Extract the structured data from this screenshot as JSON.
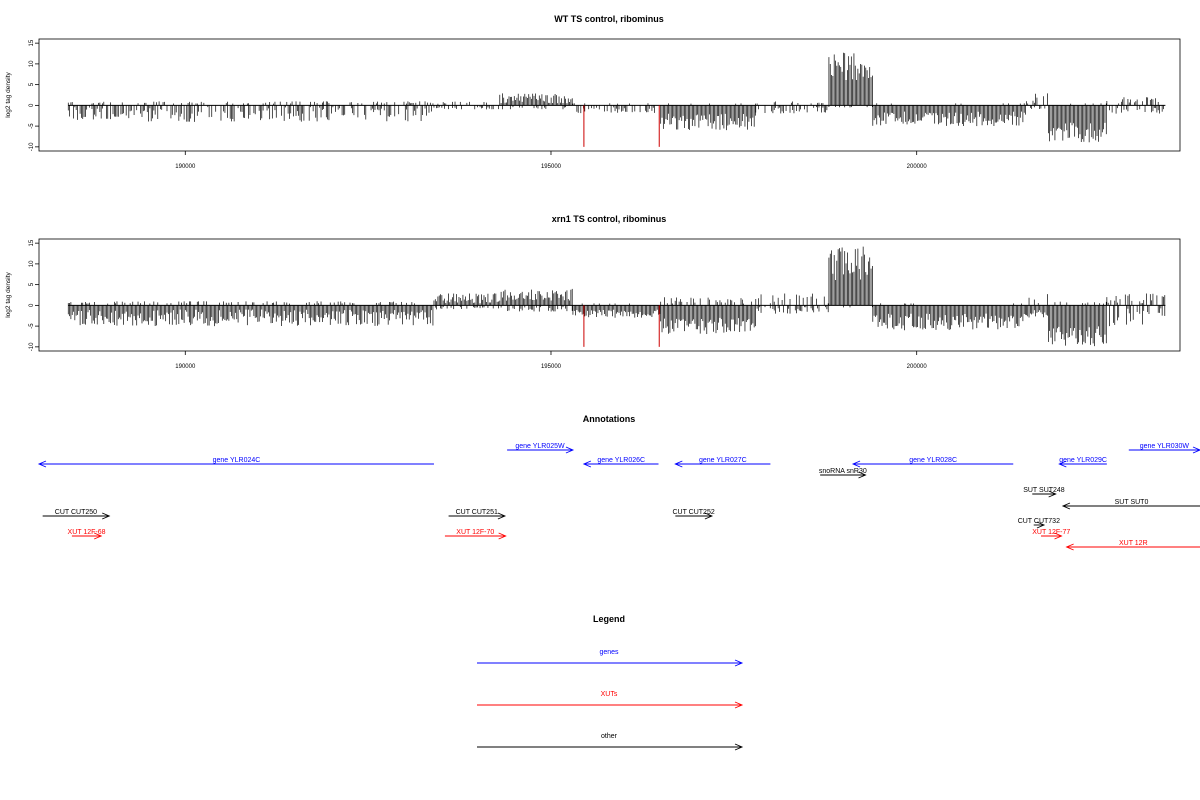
{
  "chart_data": [
    {
      "type": "bar",
      "title": "WT TS control, ribominus",
      "ylabel": "log2 tag density",
      "xlabel": "",
      "xlim": [
        188000,
        203600
      ],
      "ylim": [
        -11,
        16
      ],
      "yticks": [
        -10,
        -5,
        0,
        5,
        10,
        15
      ],
      "xticks": [
        190000,
        195000,
        200000
      ],
      "xtick_labels": [
        "190000",
        "195000",
        "200000"
      ],
      "ytick_labels": [
        "-10",
        "-5",
        "0",
        "5",
        "10",
        "15"
      ],
      "data_range": [
        188400,
        203400
      ],
      "segments": [
        {
          "from": 188400,
          "to": 193400,
          "pos": [
            0,
            1
          ],
          "neg": [
            0,
            4
          ]
        },
        {
          "from": 193400,
          "to": 194300,
          "pos": [
            0,
            1
          ],
          "neg": [
            0,
            1
          ]
        },
        {
          "from": 194300,
          "to": 195300,
          "pos": [
            0.5,
            3
          ],
          "neg": [
            0,
            1
          ]
        },
        {
          "from": 195300,
          "to": 196500,
          "pos": [
            0,
            0.5
          ],
          "neg": [
            0,
            2
          ]
        },
        {
          "from": 196500,
          "to": 197800,
          "pos": [
            0,
            0.5
          ],
          "neg": [
            2,
            6
          ]
        },
        {
          "from": 197800,
          "to": 198800,
          "pos": [
            0,
            1
          ],
          "neg": [
            0,
            2
          ]
        },
        {
          "from": 198800,
          "to": 199400,
          "pos": [
            6,
            13.5
          ],
          "neg": [
            0,
            0.5
          ]
        },
        {
          "from": 199400,
          "to": 201500,
          "pos": [
            0,
            0.5
          ],
          "neg": [
            1.5,
            5
          ]
        },
        {
          "from": 201500,
          "to": 201800,
          "pos": [
            0,
            3
          ],
          "neg": [
            0,
            1
          ]
        },
        {
          "from": 201800,
          "to": 202600,
          "pos": [
            0,
            0.5
          ],
          "neg": [
            4,
            9
          ]
        },
        {
          "from": 202600,
          "to": 203400,
          "pos": [
            0,
            2
          ],
          "neg": [
            0,
            2
          ]
        }
      ],
      "red_lines": [
        {
          "x": 195450,
          "y": -10
        },
        {
          "x": 196480,
          "y": -10
        }
      ]
    },
    {
      "type": "bar",
      "title": "xrn1 TS control, ribominus",
      "ylabel": "log2 tag density",
      "xlabel": "",
      "xlim": [
        188000,
        203600
      ],
      "ylim": [
        -11,
        16
      ],
      "yticks": [
        -10,
        -5,
        0,
        5,
        10,
        15
      ],
      "xticks": [
        190000,
        195000,
        200000
      ],
      "xtick_labels": [
        "190000",
        "195000",
        "200000"
      ],
      "ytick_labels": [
        "-10",
        "-5",
        "0",
        "5",
        "10",
        "15"
      ],
      "data_range": [
        188400,
        203400
      ],
      "segments": [
        {
          "from": 188400,
          "to": 193400,
          "pos": [
            0,
            1
          ],
          "neg": [
            1,
            5
          ]
        },
        {
          "from": 193400,
          "to": 194300,
          "pos": [
            0.5,
            3
          ],
          "neg": [
            0,
            1
          ]
        },
        {
          "from": 194300,
          "to": 195300,
          "pos": [
            1,
            4
          ],
          "neg": [
            0,
            1.5
          ]
        },
        {
          "from": 195300,
          "to": 196500,
          "pos": [
            0,
            0.5
          ],
          "neg": [
            1,
            3
          ]
        },
        {
          "from": 196500,
          "to": 197800,
          "pos": [
            0,
            2
          ],
          "neg": [
            3,
            7
          ]
        },
        {
          "from": 197800,
          "to": 198800,
          "pos": [
            0,
            3
          ],
          "neg": [
            0,
            2
          ]
        },
        {
          "from": 198800,
          "to": 199400,
          "pos": [
            6,
            14.5
          ],
          "neg": [
            0,
            0.5
          ]
        },
        {
          "from": 199400,
          "to": 201500,
          "pos": [
            0,
            0.5
          ],
          "neg": [
            2,
            6
          ]
        },
        {
          "from": 201500,
          "to": 201800,
          "pos": [
            0,
            3
          ],
          "neg": [
            1,
            3
          ]
        },
        {
          "from": 201800,
          "to": 202600,
          "pos": [
            0,
            1
          ],
          "neg": [
            5,
            10
          ]
        },
        {
          "from": 202600,
          "to": 203400,
          "pos": [
            0,
            3
          ],
          "neg": [
            0,
            5
          ]
        }
      ],
      "red_lines": [
        {
          "x": 195450,
          "y": -10
        },
        {
          "x": 196480,
          "y": -10
        }
      ]
    }
  ],
  "annotations": {
    "title": "Annotations",
    "xlim": [
      188000,
      203600
    ],
    "items": [
      {
        "label": "gene YLR024C",
        "kind": "gene",
        "start": 188000,
        "end": 193400,
        "strand": "-",
        "row": 1
      },
      {
        "label": "gene YLR025W",
        "kind": "gene",
        "start": 194400,
        "end": 195300,
        "strand": "+",
        "row": 0
      },
      {
        "label": "gene YLR026C",
        "kind": "gene",
        "start": 195450,
        "end": 196470,
        "strand": "-",
        "row": 1
      },
      {
        "label": "gene YLR027C",
        "kind": "gene",
        "start": 196700,
        "end": 198000,
        "strand": "-",
        "row": 1
      },
      {
        "label": "gene YLR028C",
        "kind": "gene",
        "start": 199130,
        "end": 201320,
        "strand": "-",
        "row": 1
      },
      {
        "label": "gene YLR029C",
        "kind": "gene",
        "start": 201950,
        "end": 202600,
        "strand": "-",
        "row": 1
      },
      {
        "label": "gene YLR030W",
        "kind": "gene",
        "start": 202900,
        "end": 204000,
        "strand": "+",
        "row": 0
      },
      {
        "label": "snoRNA snR30",
        "kind": "other",
        "start": 198680,
        "end": 199300,
        "strand": "+",
        "row": 2
      },
      {
        "label": "SUT SUT248",
        "kind": "other",
        "start": 201580,
        "end": 201900,
        "strand": "+",
        "row": 3
      },
      {
        "label": "SUT SUT0",
        "kind": "other",
        "start": 202000,
        "end": 203990,
        "strand": "-",
        "row": 4
      },
      {
        "label": "CUT CUT250",
        "kind": "other",
        "start": 188050,
        "end": 188960,
        "strand": "+",
        "row": 5
      },
      {
        "label": "CUT CUT251",
        "kind": "other",
        "start": 193600,
        "end": 194370,
        "strand": "+",
        "row": 5
      },
      {
        "label": "CUT CUT252",
        "kind": "other",
        "start": 196700,
        "end": 197200,
        "strand": "+",
        "row": 5
      },
      {
        "label": "CUT CUT732",
        "kind": "other",
        "start": 201600,
        "end": 201740,
        "strand": "+",
        "row": 6
      },
      {
        "label": "XUT 12F-68",
        "kind": "xut",
        "start": 188450,
        "end": 188850,
        "strand": "+",
        "row": 7
      },
      {
        "label": "XUT 12F-70",
        "kind": "xut",
        "start": 193550,
        "end": 194380,
        "strand": "+",
        "row": 7
      },
      {
        "label": "XUT 12F-77",
        "kind": "xut",
        "start": 201700,
        "end": 201980,
        "strand": "+",
        "row": 7
      },
      {
        "label": "XUT 12R",
        "kind": "xut",
        "start": 202050,
        "end": 204000,
        "strand": "-",
        "row": 8
      }
    ]
  },
  "legend": {
    "title": "Legend",
    "items": [
      {
        "label": "genes",
        "color": "#0000ff"
      },
      {
        "label": "XUTs",
        "color": "#ff0000"
      },
      {
        "label": "other",
        "color": "#000000"
      }
    ]
  },
  "colors": {
    "gene": "#0000ff",
    "xut": "#ff0000",
    "other": "#000000",
    "signal": "#000000",
    "marker": "#cc0000"
  }
}
